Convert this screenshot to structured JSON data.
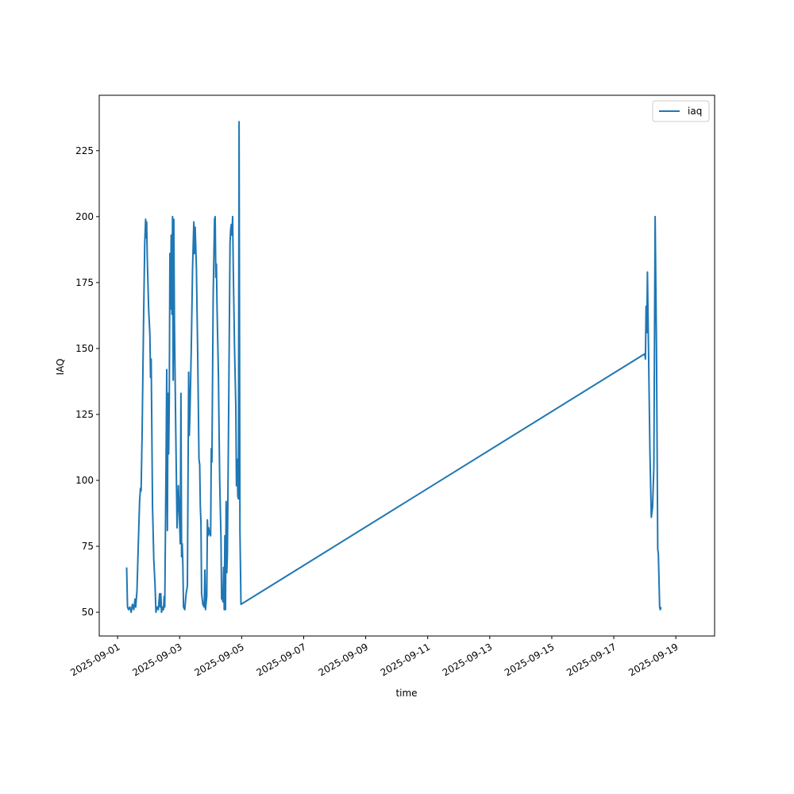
{
  "chart_data": {
    "type": "line",
    "xlabel": "time",
    "ylabel": "IAQ",
    "x_tick_labels": [
      "2025-09-01",
      "2025-09-03",
      "2025-09-05",
      "2025-09-07",
      "2025-09-09",
      "2025-09-11",
      "2025-09-13",
      "2025-09-15",
      "2025-09-17",
      "2025-09-19"
    ],
    "y_tick_labels": [
      "50",
      "75",
      "100",
      "125",
      "150",
      "175",
      "200",
      "225"
    ],
    "ylim": [
      41,
      246
    ],
    "xlim": [
      "2025-08-31T09:48",
      "2025-09-20T06:00"
    ],
    "legend_position": "top-right",
    "line_color": "#1f77b4",
    "series": [
      {
        "name": "iaq",
        "points": [
          [
            "2025-09-01T07:00",
            67
          ],
          [
            "2025-09-01T07:40",
            52
          ],
          [
            "2025-09-01T08:30",
            51
          ],
          [
            "2025-09-01T09:30",
            52
          ],
          [
            "2025-09-01T10:30",
            50
          ],
          [
            "2025-09-01T11:30",
            53
          ],
          [
            "2025-09-01T12:30",
            51
          ],
          [
            "2025-09-01T13:30",
            55
          ],
          [
            "2025-09-01T14:00",
            52
          ],
          [
            "2025-09-01T15:00",
            58
          ],
          [
            "2025-09-01T16:00",
            75
          ],
          [
            "2025-09-01T17:00",
            92
          ],
          [
            "2025-09-01T17:40",
            97
          ],
          [
            "2025-09-01T18:10",
            96
          ],
          [
            "2025-09-01T19:00",
            118
          ],
          [
            "2025-09-01T20:00",
            158
          ],
          [
            "2025-09-01T21:00",
            190
          ],
          [
            "2025-09-01T21:40",
            199
          ],
          [
            "2025-09-01T22:00",
            192
          ],
          [
            "2025-09-01T22:30",
            198
          ],
          [
            "2025-09-01T23:00",
            184
          ],
          [
            "2025-09-02T00:00",
            165
          ],
          [
            "2025-09-02T01:00",
            155
          ],
          [
            "2025-09-02T01:30",
            139
          ],
          [
            "2025-09-02T02:00",
            146
          ],
          [
            "2025-09-02T02:30",
            120
          ],
          [
            "2025-09-02T03:00",
            90
          ],
          [
            "2025-09-02T04:00",
            70
          ],
          [
            "2025-09-02T05:00",
            60
          ],
          [
            "2025-09-02T05:40",
            50
          ],
          [
            "2025-09-02T06:30",
            52
          ],
          [
            "2025-09-02T07:30",
            51
          ],
          [
            "2025-09-02T08:30",
            57
          ],
          [
            "2025-09-02T09:00",
            52
          ],
          [
            "2025-09-02T09:30",
            57
          ],
          [
            "2025-09-02T10:00",
            50
          ],
          [
            "2025-09-02T11:00",
            52
          ],
          [
            "2025-09-02T11:30",
            51
          ],
          [
            "2025-09-02T12:00",
            56
          ],
          [
            "2025-09-02T12:30",
            52
          ],
          [
            "2025-09-02T13:30",
            105
          ],
          [
            "2025-09-02T14:00",
            142
          ],
          [
            "2025-09-02T14:30",
            81
          ],
          [
            "2025-09-02T15:00",
            133
          ],
          [
            "2025-09-02T15:30",
            110
          ],
          [
            "2025-09-02T16:00",
            130
          ],
          [
            "2025-09-02T16:30",
            186
          ],
          [
            "2025-09-02T17:00",
            165
          ],
          [
            "2025-09-02T17:30",
            193
          ],
          [
            "2025-09-02T18:00",
            163
          ],
          [
            "2025-09-02T18:30",
            200
          ],
          [
            "2025-09-02T19:00",
            138
          ],
          [
            "2025-09-02T19:30",
            199
          ],
          [
            "2025-09-02T20:00",
            160
          ],
          [
            "2025-09-02T21:00",
            120
          ],
          [
            "2025-09-02T22:00",
            82
          ],
          [
            "2025-09-02T23:00",
            98
          ],
          [
            "2025-09-03T00:00",
            84
          ],
          [
            "2025-09-03T00:30",
            76
          ],
          [
            "2025-09-03T01:00",
            133
          ],
          [
            "2025-09-03T01:30",
            71
          ],
          [
            "2025-09-03T02:00",
            76
          ],
          [
            "2025-09-03T02:30",
            68
          ],
          [
            "2025-09-03T03:00",
            52
          ],
          [
            "2025-09-03T04:00",
            51
          ],
          [
            "2025-09-03T05:00",
            57
          ],
          [
            "2025-09-03T06:00",
            60
          ],
          [
            "2025-09-03T07:00",
            141
          ],
          [
            "2025-09-03T07:30",
            117
          ],
          [
            "2025-09-03T08:00",
            125
          ],
          [
            "2025-09-03T09:00",
            150
          ],
          [
            "2025-09-03T10:00",
            180
          ],
          [
            "2025-09-03T11:00",
            198
          ],
          [
            "2025-09-03T11:30",
            186
          ],
          [
            "2025-09-03T12:00",
            196
          ],
          [
            "2025-09-03T13:00",
            180
          ],
          [
            "2025-09-03T14:00",
            148
          ],
          [
            "2025-09-03T15:00",
            108
          ],
          [
            "2025-09-03T15:30",
            106
          ],
          [
            "2025-09-03T16:00",
            90
          ],
          [
            "2025-09-03T16:30",
            84
          ],
          [
            "2025-09-03T17:00",
            57
          ],
          [
            "2025-09-03T18:00",
            53
          ],
          [
            "2025-09-03T19:00",
            52
          ],
          [
            "2025-09-03T19:30",
            66
          ],
          [
            "2025-09-03T20:00",
            51
          ],
          [
            "2025-09-03T21:00",
            56
          ],
          [
            "2025-09-03T21:30",
            85
          ],
          [
            "2025-09-03T22:00",
            79
          ],
          [
            "2025-09-03T22:30",
            82
          ],
          [
            "2025-09-03T23:00",
            80
          ],
          [
            "2025-09-04T00:00",
            79
          ],
          [
            "2025-09-04T00:30",
            112
          ],
          [
            "2025-09-04T01:00",
            107
          ],
          [
            "2025-09-04T02:00",
            170
          ],
          [
            "2025-09-04T03:00",
            199
          ],
          [
            "2025-09-04T03:30",
            200
          ],
          [
            "2025-09-04T04:00",
            177
          ],
          [
            "2025-09-04T04:30",
            182
          ],
          [
            "2025-09-04T05:00",
            165
          ],
          [
            "2025-09-04T06:00",
            140
          ],
          [
            "2025-09-04T06:30",
            119
          ],
          [
            "2025-09-04T07:00",
            100
          ],
          [
            "2025-09-04T07:30",
            89
          ],
          [
            "2025-09-04T08:00",
            79
          ],
          [
            "2025-09-04T08:30",
            55
          ],
          [
            "2025-09-04T09:00",
            56
          ],
          [
            "2025-09-04T09:30",
            54
          ],
          [
            "2025-09-04T10:00",
            67
          ],
          [
            "2025-09-04T10:30",
            51
          ],
          [
            "2025-09-04T11:00",
            79
          ],
          [
            "2025-09-04T11:30",
            51
          ],
          [
            "2025-09-04T12:00",
            92
          ],
          [
            "2025-09-04T12:30",
            65
          ],
          [
            "2025-09-04T13:00",
            72
          ],
          [
            "2025-09-04T14:00",
            130
          ],
          [
            "2025-09-04T15:00",
            190
          ],
          [
            "2025-09-04T15:30",
            195
          ],
          [
            "2025-09-04T16:00",
            197
          ],
          [
            "2025-09-04T16:30",
            193
          ],
          [
            "2025-09-04T17:00",
            200
          ],
          [
            "2025-09-04T17:30",
            180
          ],
          [
            "2025-09-04T18:30",
            150
          ],
          [
            "2025-09-04T19:30",
            128
          ],
          [
            "2025-09-04T20:00",
            98
          ],
          [
            "2025-09-04T20:30",
            108
          ],
          [
            "2025-09-04T21:00",
            94
          ],
          [
            "2025-09-04T21:30",
            93
          ],
          [
            "2025-09-04T22:00",
            236
          ],
          [
            "2025-09-04T22:40",
            81
          ],
          [
            "2025-09-04T23:30",
            53
          ],
          [
            "2025-09-18T00:00",
            148
          ],
          [
            "2025-09-18T00:30",
            146
          ],
          [
            "2025-09-18T01:00",
            166
          ],
          [
            "2025-09-18T01:30",
            156
          ],
          [
            "2025-09-18T02:00",
            179
          ],
          [
            "2025-09-18T03:00",
            145
          ],
          [
            "2025-09-18T04:00",
            110
          ],
          [
            "2025-09-18T05:00",
            86
          ],
          [
            "2025-09-18T06:00",
            90
          ],
          [
            "2025-09-18T07:00",
            105
          ],
          [
            "2025-09-18T08:00",
            200
          ],
          [
            "2025-09-18T09:00",
            150
          ],
          [
            "2025-09-18T10:00",
            74
          ],
          [
            "2025-09-18T10:30",
            72
          ],
          [
            "2025-09-18T11:30",
            52
          ],
          [
            "2025-09-18T12:00",
            51
          ],
          [
            "2025-09-18T12:30",
            52
          ]
        ]
      }
    ]
  }
}
